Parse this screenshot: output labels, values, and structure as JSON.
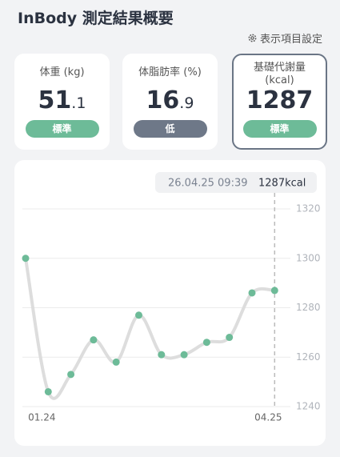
{
  "header": {
    "title": "InBody 測定結果概要",
    "settings": "表示項目設定"
  },
  "cards": [
    {
      "label": "体重 (kg)",
      "value_int": "51",
      "value_dec": ".1",
      "badge": "標準"
    },
    {
      "label": "体脂肪率 (%)",
      "value_int": "16",
      "value_dec": ".9",
      "badge": "低"
    },
    {
      "label": "基礎代謝量 (kcal)",
      "value_int": "1287",
      "value_dec": "",
      "badge": "標準"
    }
  ],
  "chart_data": {
    "type": "line",
    "tooltip_date": "26.04.25 09:39",
    "tooltip_value": "1287kcal",
    "categories": [
      null,
      "01.24",
      null,
      null,
      null,
      null,
      null,
      null,
      null,
      null,
      null,
      "04.25"
    ],
    "series": [
      {
        "color": "#dddddd",
        "point_color": "#6dbb98",
        "values": [
          1300,
          1246,
          1253,
          1267,
          1258,
          1277,
          1261,
          1261,
          1266,
          1268,
          1286,
          1287
        ]
      }
    ],
    "ylim": [
      1240,
      1320
    ],
    "yticks": [
      1240,
      1260,
      1280,
      1300,
      1320
    ],
    "grid": true
  }
}
